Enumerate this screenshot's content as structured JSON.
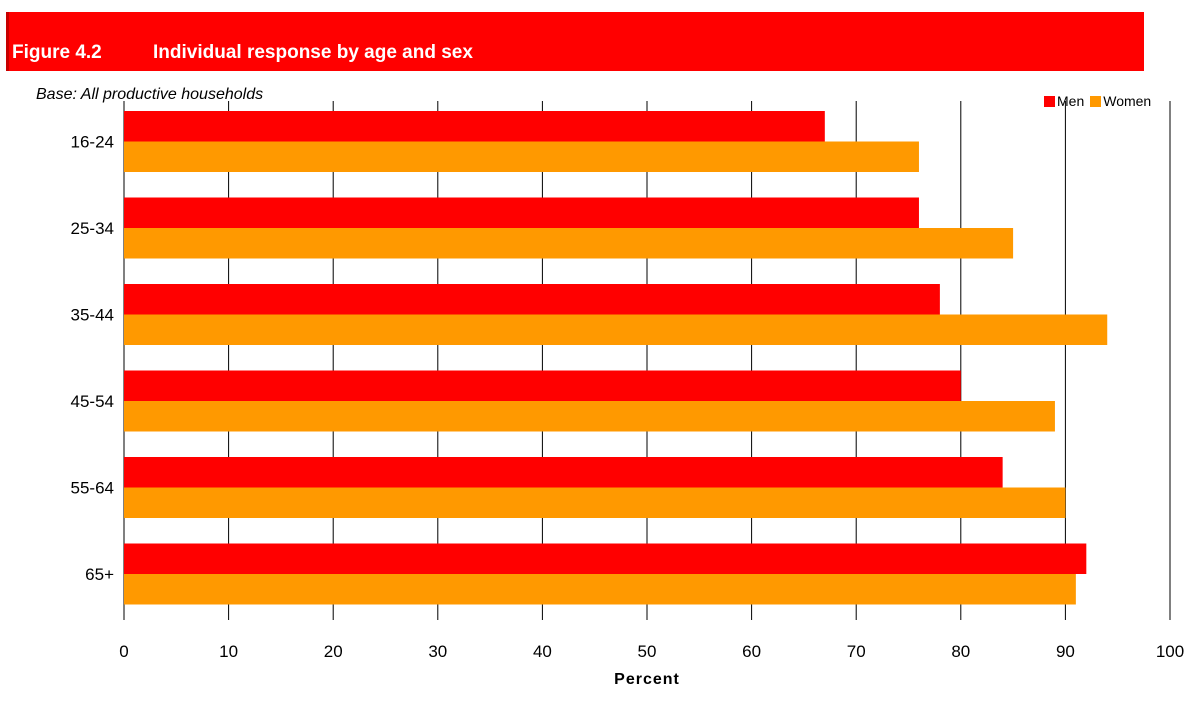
{
  "header": {
    "figure_number": "Figure 4.2",
    "figure_title": "Individual response by age and sex",
    "base_note": "Base: All productive households"
  },
  "colors": {
    "banner": "#ff0000",
    "men": "#ff0000",
    "women": "#ff9900",
    "gridline": "#000000"
  },
  "chart_data": {
    "type": "bar",
    "orientation": "horizontal",
    "title": "Individual response by age and sex",
    "xlabel": "Percent",
    "ylabel": "",
    "categories": [
      "16-24",
      "25-34",
      "35-44",
      "45-54",
      "55-64",
      "65+"
    ],
    "series": [
      {
        "name": "Men",
        "color": "#ff0000",
        "values": [
          67,
          76,
          78,
          80,
          84,
          92
        ]
      },
      {
        "name": "Women",
        "color": "#ff9900",
        "values": [
          76,
          85,
          94,
          89,
          90,
          91
        ]
      }
    ],
    "xlim": [
      0,
      100
    ],
    "xticks": [
      "0",
      "10",
      "20",
      "30",
      "40",
      "50",
      "60",
      "70",
      "80",
      "90",
      "100"
    ],
    "grid": true,
    "legend_position": "top-right"
  }
}
